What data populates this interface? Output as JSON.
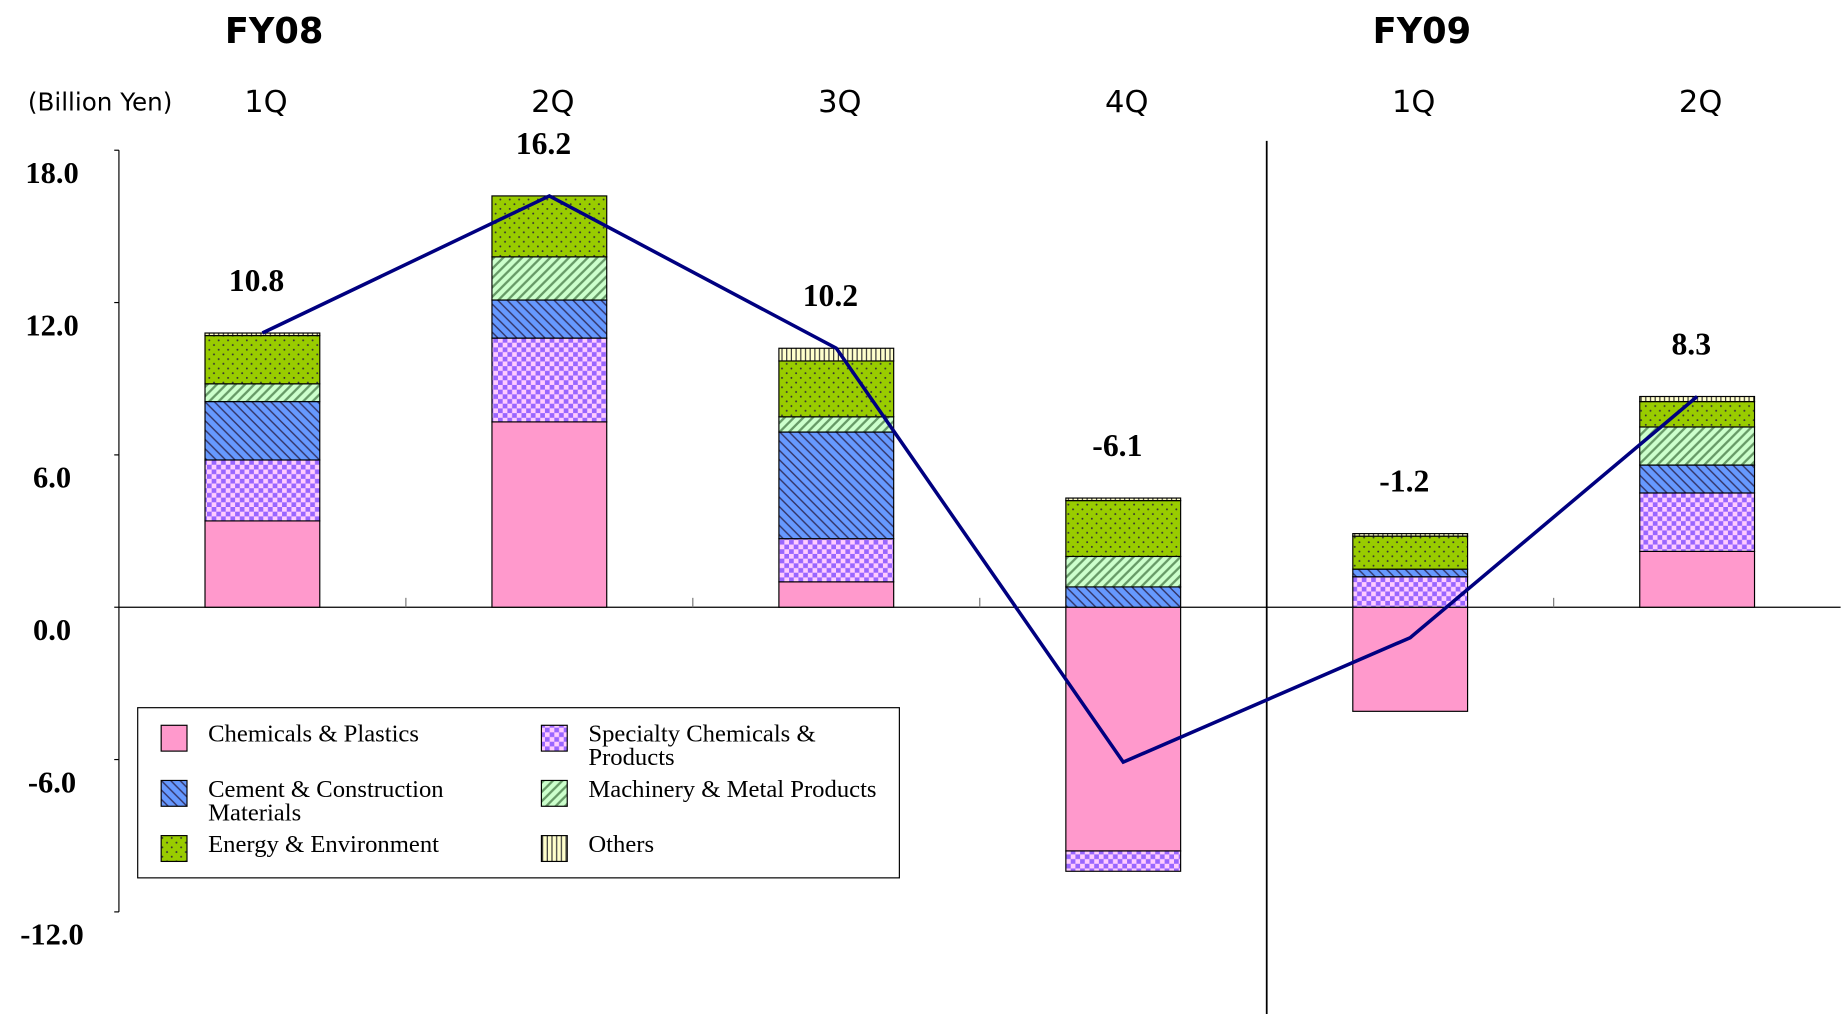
{
  "chart_data": {
    "type": "stacked-bar-line",
    "unit_label": "(Billion Yen)",
    "groups": [
      {
        "label": "FY08",
        "categories": [
          "1Q",
          "2Q",
          "3Q",
          "4Q"
        ]
      },
      {
        "label": "FY09",
        "categories": [
          "1Q",
          "2Q"
        ]
      }
    ],
    "series": [
      {
        "name": "Chemicals & Plastics",
        "color": "#ff99cc",
        "pattern": "solid",
        "values": [
          3.4,
          7.3,
          1.0,
          -9.6,
          -4.1,
          2.2
        ]
      },
      {
        "name": "Specialty Chemicals & Products",
        "color": "#9966ff",
        "pattern": "checker",
        "values": [
          2.4,
          3.3,
          1.7,
          -0.8,
          1.2,
          2.3
        ]
      },
      {
        "name": "Cement & Construction Materials",
        "color": "#6699ff",
        "pattern": "stripes",
        "values": [
          2.3,
          1.5,
          4.2,
          0.8,
          0.3,
          1.1
        ]
      },
      {
        "name": "Machinery & Metal Products",
        "color": "#ccffcc",
        "pattern": "wide-stripes",
        "values": [
          0.7,
          1.7,
          0.6,
          1.2,
          0,
          1.5
        ]
      },
      {
        "name": "Energy & Environment",
        "color": "#99cc00",
        "pattern": "dots",
        "values": [
          1.9,
          2.4,
          2.2,
          2.2,
          1.3,
          1.0
        ]
      },
      {
        "name": "Others",
        "color": "#ffffcc",
        "pattern": "vlines",
        "values": [
          0.1,
          0,
          0.5,
          0.1,
          0.1,
          0.2
        ]
      }
    ],
    "total": {
      "color": "#000080",
      "values": [
        10.8,
        16.2,
        10.2,
        -6.1,
        -1.2,
        8.3
      ]
    },
    "ylim": [
      -12,
      18
    ],
    "yticks": [
      {
        "value": 18,
        "label": "18.0"
      },
      {
        "value": 12,
        "label": "12.0"
      },
      {
        "value": 6,
        "label": "6.0"
      },
      {
        "value": 0,
        "label": "0.0"
      },
      {
        "value": -6,
        "label": "-6.0"
      },
      {
        "value": -12,
        "label": "-12.0"
      }
    ]
  }
}
